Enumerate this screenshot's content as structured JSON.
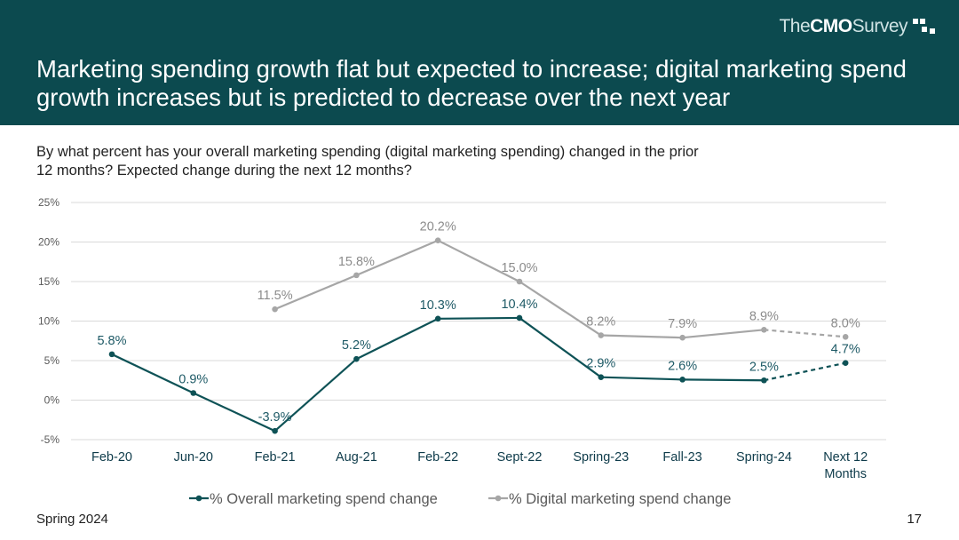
{
  "header": {
    "title": "Marketing spending growth flat but expected to increase; digital marketing spend growth increases but is predicted to decrease over the next year",
    "logo": {
      "pre": "The ",
      "bold": "CMO",
      "post": " Survey"
    }
  },
  "question": "By what percent has your overall marketing spending (digital marketing spending) changed in the prior 12 months? Expected change during the next 12 months?",
  "footer": {
    "left": "Spring 2024",
    "page": "17"
  },
  "colors": {
    "header": "#0c4a4f",
    "overall": "#0e5256",
    "digital": "#a6a6a6"
  },
  "chart_data": {
    "type": "line",
    "categories": [
      "Feb-20",
      "Jun-20",
      "Feb-21",
      "Aug-21",
      "Feb-22",
      "Sept-22",
      "Spring-23",
      "Fall-23",
      "Spring-24",
      "Next 12 Months"
    ],
    "ylim": [
      -5,
      25
    ],
    "yticks": [
      "-5%",
      "0%",
      "5%",
      "10%",
      "15%",
      "20%",
      "25%"
    ],
    "grid": true,
    "legend": "bottom",
    "series": [
      {
        "name": "% Overall marketing spend change",
        "values": [
          5.8,
          0.9,
          -3.9,
          5.2,
          10.3,
          10.4,
          2.9,
          2.6,
          2.5,
          4.7
        ],
        "labels": [
          "5.8%",
          "0.9%",
          "-3.9%",
          "5.2%",
          "10.3%",
          "10.4%",
          "2.9%",
          "2.6%",
          "2.5%",
          "4.7%"
        ],
        "dashed_last": true
      },
      {
        "name": "% Digital marketing spend change",
        "values": [
          null,
          null,
          11.5,
          15.8,
          20.2,
          15.0,
          8.2,
          7.9,
          8.9,
          8.0
        ],
        "labels": [
          null,
          null,
          "11.5%",
          "15.8%",
          "20.2%",
          "15.0%",
          "8.2%",
          "7.9%",
          "8.9%",
          "8.0%"
        ],
        "dashed_last": true
      }
    ]
  }
}
